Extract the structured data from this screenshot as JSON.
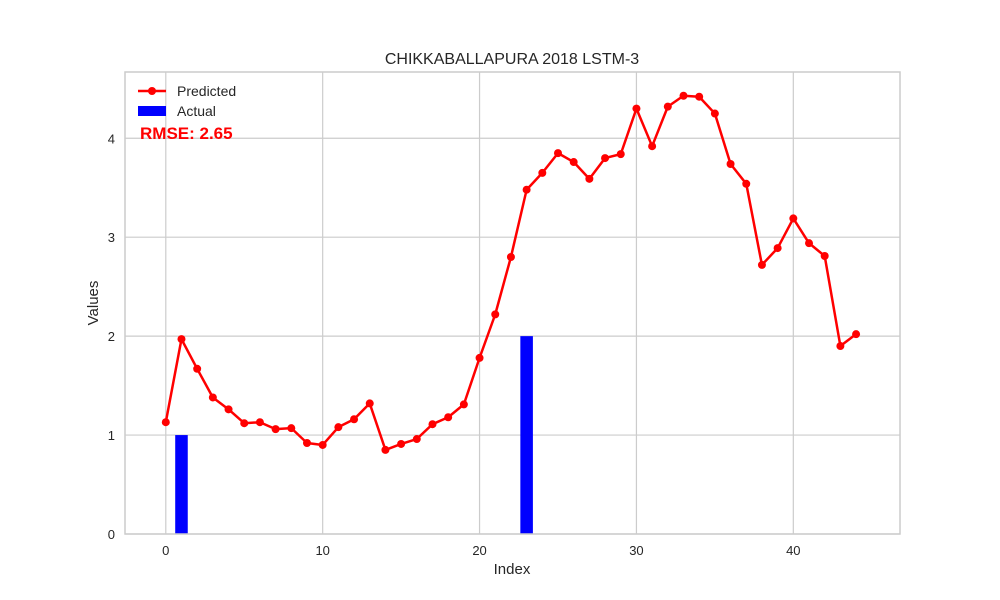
{
  "chart_data": {
    "type": "line",
    "title": "CHIKKABALLAPURA 2018 LSTM-3",
    "xlabel": "Index",
    "ylabel": "Values",
    "xlim": [
      -2.6,
      46.8
    ],
    "ylim": [
      0,
      4.67
    ],
    "xticks": [
      0,
      10,
      20,
      30,
      40
    ],
    "yticks": [
      0,
      1,
      2,
      3,
      4
    ],
    "grid": true,
    "legend_position": "top-left",
    "annotation": "RMSE: 2.65",
    "series": [
      {
        "name": "Predicted",
        "type": "line",
        "color": "#ff0000",
        "x": [
          0,
          1,
          2,
          3,
          4,
          5,
          6,
          7,
          8,
          9,
          10,
          11,
          12,
          13,
          14,
          15,
          16,
          17,
          18,
          19,
          20,
          21,
          22,
          23,
          24,
          25,
          26,
          27,
          28,
          29,
          30,
          31,
          32,
          33,
          34,
          35,
          36,
          37,
          38,
          39,
          40,
          41,
          42,
          43,
          44
        ],
        "values": [
          1.13,
          1.97,
          1.67,
          1.38,
          1.26,
          1.12,
          1.13,
          1.06,
          1.07,
          0.92,
          0.9,
          1.08,
          1.16,
          1.32,
          0.85,
          0.91,
          0.96,
          1.11,
          1.18,
          1.31,
          1.78,
          2.22,
          2.8,
          3.48,
          3.65,
          3.85,
          3.76,
          3.59,
          3.8,
          3.84,
          4.3,
          3.92,
          4.32,
          4.43,
          4.42,
          4.25,
          3.74,
          3.54,
          2.72,
          2.89,
          3.19,
          2.94,
          2.81,
          1.9,
          2.02
        ]
      },
      {
        "name": "Actual",
        "type": "bar",
        "color": "#0000ff",
        "x": [
          1,
          23
        ],
        "values": [
          1,
          2
        ]
      }
    ]
  }
}
